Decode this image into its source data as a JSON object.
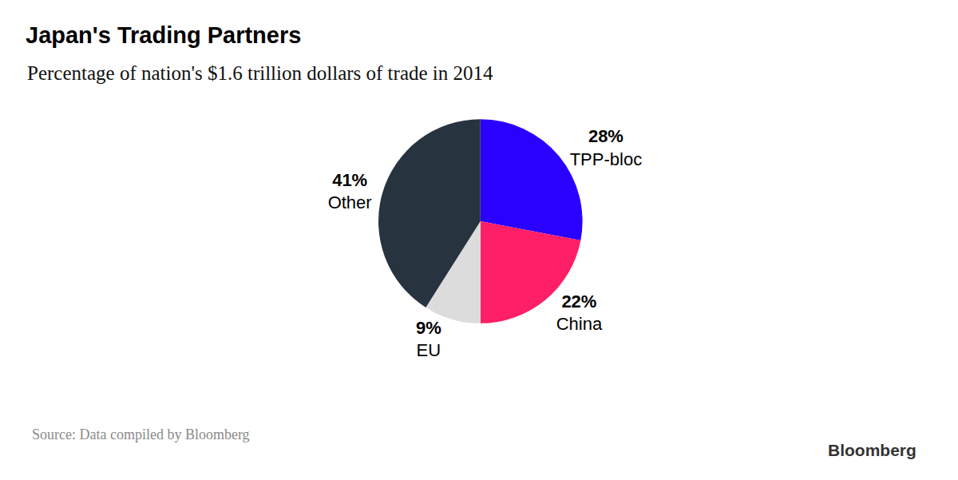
{
  "chart_data": {
    "type": "pie",
    "title": "Japan's Trading Partners",
    "subtitle": "Percentage of nation's $1.6 trillion dollars of trade in 2014",
    "categories": [
      "TPP-bloc",
      "China",
      "EU",
      "Other"
    ],
    "values": [
      28,
      22,
      9,
      41
    ],
    "value_labels": [
      "28%",
      "22%",
      "9%",
      "41%"
    ],
    "colors": [
      "#2a00ff",
      "#ff1f66",
      "#dcdcdc",
      "#283340"
    ],
    "data_labels": true,
    "source": "Source: Data compiled by Bloomberg",
    "credit": "Bloomberg"
  }
}
